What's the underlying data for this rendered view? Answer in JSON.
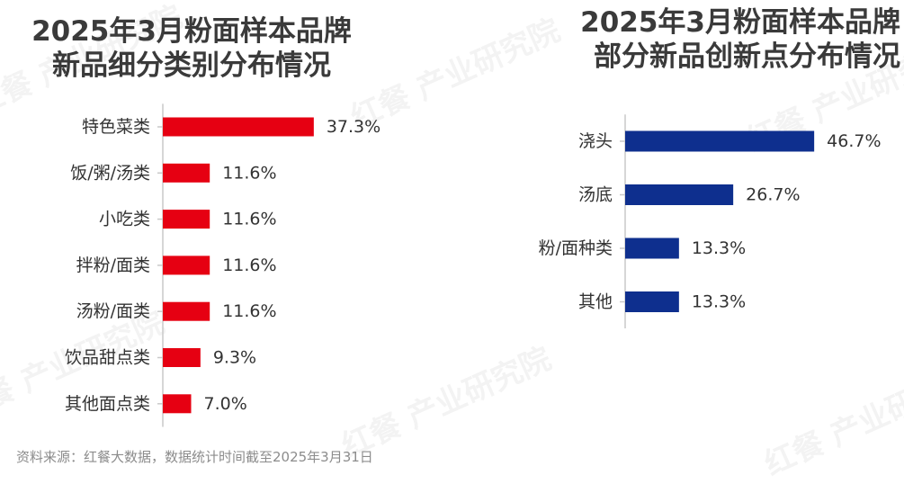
{
  "watermark": "红餐 产业研究院",
  "footer": "资料来源：红餐大数据，数据统计时间截至2025年3月31日",
  "chart_data": [
    {
      "type": "bar",
      "orientation": "horizontal",
      "title_line1": "2025年3月粉面样本品牌",
      "title_line2": "新品细分类别分布情况",
      "categories": [
        "特色菜类",
        "饭/粥/汤类",
        "小吃类",
        "拌粉/面类",
        "汤粉/面类",
        "饮品甜点类",
        "其他面点类"
      ],
      "values": [
        37.3,
        11.6,
        11.6,
        11.6,
        11.6,
        9.3,
        7.0
      ],
      "labels": [
        "37.3%",
        "11.6%",
        "11.6%",
        "11.6%",
        "11.6%",
        "9.3%",
        "7.0%"
      ],
      "unit": "%",
      "color": "#e60012",
      "xlim": [
        0,
        100
      ],
      "grid": false
    },
    {
      "type": "bar",
      "orientation": "horizontal",
      "title_line1": "2025年3月粉面样本品牌",
      "title_line2": "部分新品创新点分布情况",
      "categories": [
        "浇头",
        "汤底",
        "粉/面种类",
        "其他"
      ],
      "values": [
        46.7,
        26.7,
        13.3,
        13.3
      ],
      "labels": [
        "46.7%",
        "26.7%",
        "13.3%",
        "13.3%"
      ],
      "unit": "%",
      "color": "#0e2f8e",
      "xlim": [
        0,
        100
      ],
      "grid": false
    }
  ]
}
